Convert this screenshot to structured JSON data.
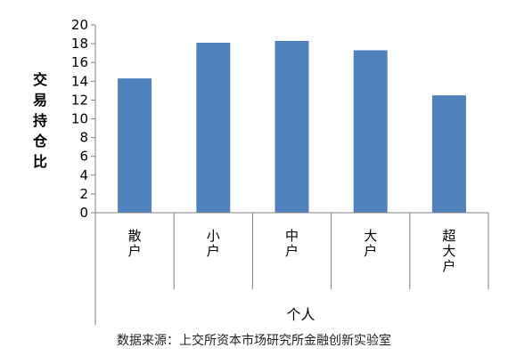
{
  "chart_data": {
    "type": "bar",
    "title": "",
    "xlabel": "个人",
    "ylabel": "交易持仓比",
    "categories": [
      "散户",
      "小户",
      "中户",
      "大户",
      "超大户"
    ],
    "values": [
      14.3,
      18.1,
      18.3,
      17.3,
      12.5
    ],
    "ylim": [
      0,
      20
    ],
    "yticks": [
      0,
      2,
      4,
      6,
      8,
      10,
      12,
      14,
      16,
      18,
      20
    ],
    "grid": false,
    "legend": "none",
    "bar_color": "#4f81bd"
  },
  "source_note": "数据来源：上交所资本市场研究所金融创新实验室"
}
